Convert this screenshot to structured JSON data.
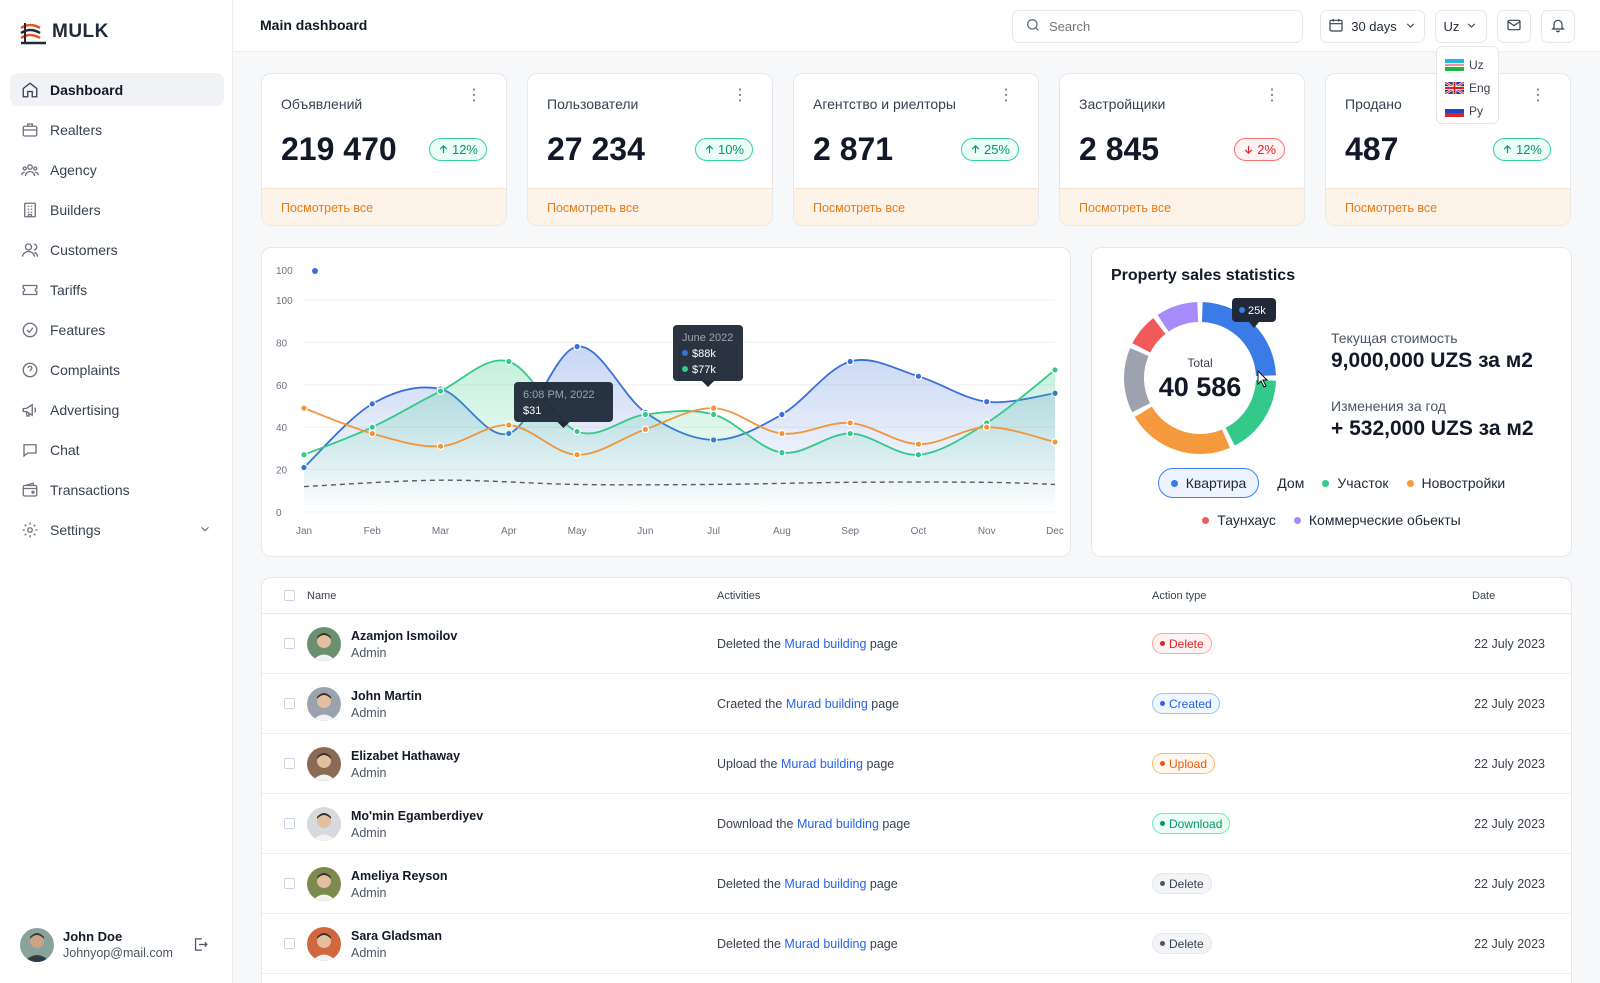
{
  "app": {
    "brand": "MULK",
    "page_title": "Main dashboard"
  },
  "sidebar": {
    "items": [
      {
        "label": "Dashboard",
        "icon": "home-icon"
      },
      {
        "label": "Realters",
        "icon": "briefcase-icon"
      },
      {
        "label": "Agency",
        "icon": "users-group-icon"
      },
      {
        "label": "Builders",
        "icon": "building-icon"
      },
      {
        "label": "Customers",
        "icon": "users-icon"
      },
      {
        "label": "Tariffs",
        "icon": "ticket-icon"
      },
      {
        "label": "Features",
        "icon": "check-circle-icon"
      },
      {
        "label": "Complaints",
        "icon": "question-circle-icon"
      },
      {
        "label": "Advertising",
        "icon": "megaphone-icon"
      },
      {
        "label": "Chat",
        "icon": "chat-icon"
      },
      {
        "label": "Transactions",
        "icon": "wallet-icon"
      },
      {
        "label": "Settings",
        "icon": "gear-icon"
      }
    ],
    "user": {
      "name": "John Doe",
      "email": "Johnyop@mail.com"
    }
  },
  "header": {
    "search_placeholder": "Search",
    "date_range": "30 days",
    "language": "Uz",
    "language_options": [
      "Uz",
      "Eng",
      "Ру"
    ]
  },
  "kpis": [
    {
      "title": "Объявлений",
      "value": "219 470",
      "change": "12%",
      "direction": "up",
      "link": "Посмотреть все"
    },
    {
      "title": "Пользователи",
      "value": "27 234",
      "change": "10%",
      "direction": "up",
      "link": "Посмотреть все"
    },
    {
      "title": "Агентство и риелторы",
      "value": "2 871",
      "change": "25%",
      "direction": "up",
      "link": "Посмотреть все"
    },
    {
      "title": "Застройщики",
      "value": "2 845",
      "change": "2%",
      "direction": "down",
      "link": "Посмотреть все"
    },
    {
      "title": "Продано",
      "value": "487",
      "change": "12%",
      "direction": "up",
      "link": "Посмотреть все"
    }
  ],
  "chart_data": [
    {
      "type": "line",
      "x": [
        "Jan",
        "Feb",
        "Mar",
        "Apr",
        "May",
        "Jun",
        "Jul",
        "Aug",
        "Sep",
        "Oct",
        "Nov",
        "Dec"
      ],
      "ylim": [
        0,
        100
      ],
      "yticks": [
        0,
        20,
        40,
        60,
        80,
        100
      ],
      "legend_label": "100",
      "series": [
        {
          "color": "#3b6fd9",
          "x": [
            0,
            1,
            2,
            3,
            4,
            5,
            6,
            7,
            8,
            9,
            10,
            11
          ],
          "y": [
            21,
            51,
            58,
            37,
            78,
            47,
            34,
            46,
            71,
            64,
            52,
            56
          ]
        },
        {
          "color": "#34c98a",
          "x": [
            0,
            1,
            2,
            3,
            4,
            5,
            6,
            7,
            8,
            9,
            10,
            11
          ],
          "y": [
            27,
            40,
            57,
            71,
            38,
            46,
            46,
            28,
            37,
            27,
            42,
            67
          ]
        },
        {
          "color": "#f0953a",
          "x": [
            0,
            1,
            2,
            3,
            4,
            5,
            6,
            7,
            8,
            9,
            10,
            11
          ],
          "y": [
            49,
            37,
            31,
            41,
            27,
            39,
            49,
            37,
            42,
            32,
            40,
            33
          ]
        },
        {
          "color": "#555b66",
          "dashed": true,
          "x": [
            0,
            2,
            4,
            6,
            8,
            10,
            11
          ],
          "y": [
            12,
            15,
            13,
            13,
            14,
            14,
            13
          ]
        }
      ],
      "tooltips": [
        {
          "title": "June 2022",
          "lines": [
            "$88k",
            "$77k"
          ]
        },
        {
          "title": "6:08 PM, 2022",
          "lines": [
            "$31"
          ]
        }
      ]
    },
    {
      "type": "pie",
      "title": "Property sales statistics",
      "center_label": "Total",
      "center_value": "40 586",
      "tooltip": "25k",
      "slices": [
        {
          "label": "Квартира",
          "value": 25,
          "color": "#3b7be8"
        },
        {
          "label": "Участок",
          "value": 18,
          "color": "#34c98a"
        },
        {
          "label": "Новостройки",
          "value": 24,
          "color": "#f59a3c"
        },
        {
          "label": "Дом",
          "value": 15,
          "color": "#9ca3af"
        },
        {
          "label": "Таунхаус",
          "value": 8,
          "color": "#f05a5a"
        },
        {
          "label": "Коммерческие обьекты",
          "value": 10,
          "color": "#a78bfa"
        }
      ],
      "legend_rows": [
        [
          {
            "label": "Квартира",
            "color": "#3b7be8",
            "active": true
          },
          {
            "label": "Дом",
            "color": ""
          },
          {
            "label": "Участок",
            "color": "#34c98a"
          },
          {
            "label": "Новостройки",
            "color": "#f59a3c"
          }
        ],
        [
          {
            "label": "Таунхаус",
            "color": "#f05a5a"
          },
          {
            "label": "Коммерческие обьекты",
            "color": "#a78bfa"
          }
        ]
      ]
    }
  ],
  "stats": {
    "current_label": "Текущая стоимость",
    "current_value": "9,000,000 UZS за м2",
    "change_label": "Изменения за год",
    "change_value": "+ 532,000 UZS за м2"
  },
  "table": {
    "headers": {
      "name": "Name",
      "activities": "Activities",
      "action_type": "Action type",
      "date": "Date"
    },
    "rows": [
      {
        "name": "Azamjon Ismoilov",
        "role": "Admin",
        "act_pre": "Deleted the",
        "act_link": "Murad building",
        "act_post": "page",
        "action": "Delete",
        "style": "p-delete",
        "dot": "#dc2626",
        "date": "22 July 2023",
        "avatar": "#6b8f71"
      },
      {
        "name": "John Martin",
        "role": "Admin",
        "act_pre": "Craeted the",
        "act_link": "Murad building",
        "act_post": "page",
        "action": "Created",
        "style": "p-created",
        "dot": "#2563eb",
        "date": "22 July 2023",
        "avatar": "#9aa3ad"
      },
      {
        "name": "Elizabet Hathaway",
        "role": "Admin",
        "act_pre": "Upload the",
        "act_link": "Murad building",
        "act_post": "page",
        "action": "Upload",
        "style": "p-upload",
        "dot": "#ea580c",
        "date": "22 July 2023",
        "avatar": "#8a6a55"
      },
      {
        "name": "Mo'min Egamberdiyev",
        "role": "Admin",
        "act_pre": "Download the",
        "act_link": "Murad building",
        "act_post": "page",
        "action": "Download",
        "style": "p-download",
        "dot": "#059669",
        "date": "22 July 2023",
        "avatar": "#d6d9dd"
      },
      {
        "name": "Ameliya Reyson",
        "role": "Admin",
        "act_pre": "Deleted the",
        "act_link": "Murad building",
        "act_post": "page",
        "action": "Delete",
        "style": "p-neutral",
        "dot": "#4b5563",
        "date": "22 July 2023",
        "avatar": "#7d8a4f"
      },
      {
        "name": "Sara Gladsman",
        "role": "Admin",
        "act_pre": "Deleted the",
        "act_link": "Murad building",
        "act_post": "page",
        "action": "Delete",
        "style": "p-neutral",
        "dot": "#4b5563",
        "date": "22 July 2023",
        "avatar": "#d1673f"
      }
    ]
  }
}
